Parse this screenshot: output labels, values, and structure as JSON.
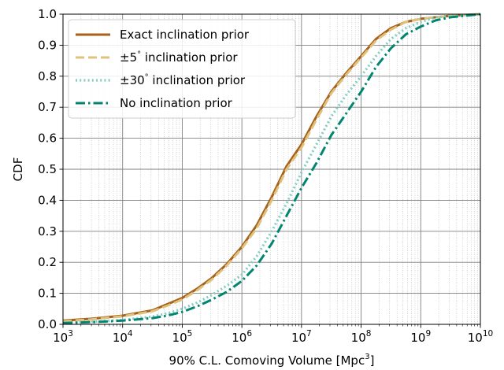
{
  "chart_data": {
    "type": "line",
    "title": "",
    "xlabel": "90% C.L. Comoving Volume [Mpc",
    "xlabel_sup": "3",
    "xlabel_end": "]",
    "ylabel": "CDF",
    "xscale": "log",
    "xlim": [
      1000,
      10000000000
    ],
    "ylim": [
      0,
      1
    ],
    "grid": true,
    "legend_position": "top-left",
    "x_ticks": [
      {
        "value": 1000,
        "base": "10",
        "exp": "3"
      },
      {
        "value": 10000,
        "base": "10",
        "exp": "4"
      },
      {
        "value": 100000,
        "base": "10",
        "exp": "5"
      },
      {
        "value": 1000000,
        "base": "10",
        "exp": "6"
      },
      {
        "value": 10000000,
        "base": "10",
        "exp": "7"
      },
      {
        "value": 100000000,
        "base": "10",
        "exp": "8"
      },
      {
        "value": 1000000000,
        "base": "10",
        "exp": "9"
      },
      {
        "value": 10000000000,
        "base": "10",
        "exp": "10"
      }
    ],
    "y_ticks": [
      "0.0",
      "0.1",
      "0.2",
      "0.3",
      "0.4",
      "0.5",
      "0.6",
      "0.7",
      "0.8",
      "0.9",
      "1.0"
    ],
    "series": [
      {
        "name": "Exact inclination prior",
        "color": "#a6611a",
        "style": "solid",
        "x": [
          1000,
          3000,
          10000,
          31600,
          56200,
          100000,
          178000,
          316000,
          562000,
          1000000,
          1780000,
          3160000,
          5620000,
          10000000,
          17800000,
          31600000,
          56200000,
          100000000,
          178000000,
          316000000,
          562000000,
          1000000000,
          1780000000,
          3160000000,
          10000000000
        ],
        "y": [
          0.012,
          0.018,
          0.028,
          0.045,
          0.065,
          0.085,
          0.115,
          0.15,
          0.195,
          0.25,
          0.32,
          0.41,
          0.51,
          0.58,
          0.67,
          0.75,
          0.81,
          0.865,
          0.92,
          0.955,
          0.975,
          0.985,
          0.99,
          0.995,
          1.0
        ]
      },
      {
        "name": "±5° inclination prior",
        "name_main": "±5",
        "name_deg": "°",
        "name_rest": " inclination prior",
        "color": "#dfc27d",
        "style": "dashed",
        "x": [
          1000,
          3000,
          10000,
          31600,
          56200,
          100000,
          178000,
          316000,
          562000,
          1000000,
          1780000,
          3160000,
          5620000,
          10000000,
          17800000,
          31600000,
          56200000,
          100000000,
          178000000,
          316000000,
          562000000,
          1000000000,
          1780000000,
          3160000000,
          10000000000
        ],
        "y": [
          0.01,
          0.016,
          0.026,
          0.042,
          0.06,
          0.08,
          0.11,
          0.145,
          0.19,
          0.245,
          0.31,
          0.4,
          0.5,
          0.57,
          0.66,
          0.745,
          0.805,
          0.86,
          0.915,
          0.95,
          0.975,
          0.985,
          0.99,
          0.995,
          1.0
        ]
      },
      {
        "name": "±30° inclination prior",
        "name_main": "±30",
        "name_deg": "°",
        "name_rest": " inclination prior",
        "color": "#80cdc1",
        "style": "dotted",
        "x": [
          1000,
          3000,
          10000,
          31600,
          56200,
          100000,
          178000,
          316000,
          562000,
          1000000,
          1780000,
          3160000,
          5620000,
          10000000,
          17800000,
          31600000,
          56200000,
          100000000,
          178000000,
          316000000,
          562000000,
          1000000000,
          1780000000,
          3160000000,
          10000000000
        ],
        "y": [
          0.005,
          0.008,
          0.014,
          0.025,
          0.035,
          0.05,
          0.07,
          0.095,
          0.125,
          0.16,
          0.22,
          0.3,
          0.39,
          0.49,
          0.58,
          0.67,
          0.74,
          0.8,
          0.865,
          0.92,
          0.955,
          0.975,
          0.99,
          0.995,
          1.0
        ]
      },
      {
        "name": "No inclination prior",
        "color": "#018571",
        "style": "dashdot",
        "x": [
          1000,
          3000,
          10000,
          31600,
          56200,
          100000,
          178000,
          316000,
          562000,
          1000000,
          1780000,
          3160000,
          5620000,
          10000000,
          17800000,
          31600000,
          56200000,
          100000000,
          178000000,
          316000000,
          562000000,
          1000000000,
          1780000000,
          3160000000,
          10000000000
        ],
        "y": [
          0.004,
          0.007,
          0.012,
          0.02,
          0.028,
          0.04,
          0.058,
          0.08,
          0.105,
          0.14,
          0.19,
          0.26,
          0.35,
          0.44,
          0.52,
          0.61,
          0.68,
          0.75,
          0.83,
          0.89,
          0.935,
          0.96,
          0.98,
          0.99,
          1.0
        ]
      }
    ]
  }
}
